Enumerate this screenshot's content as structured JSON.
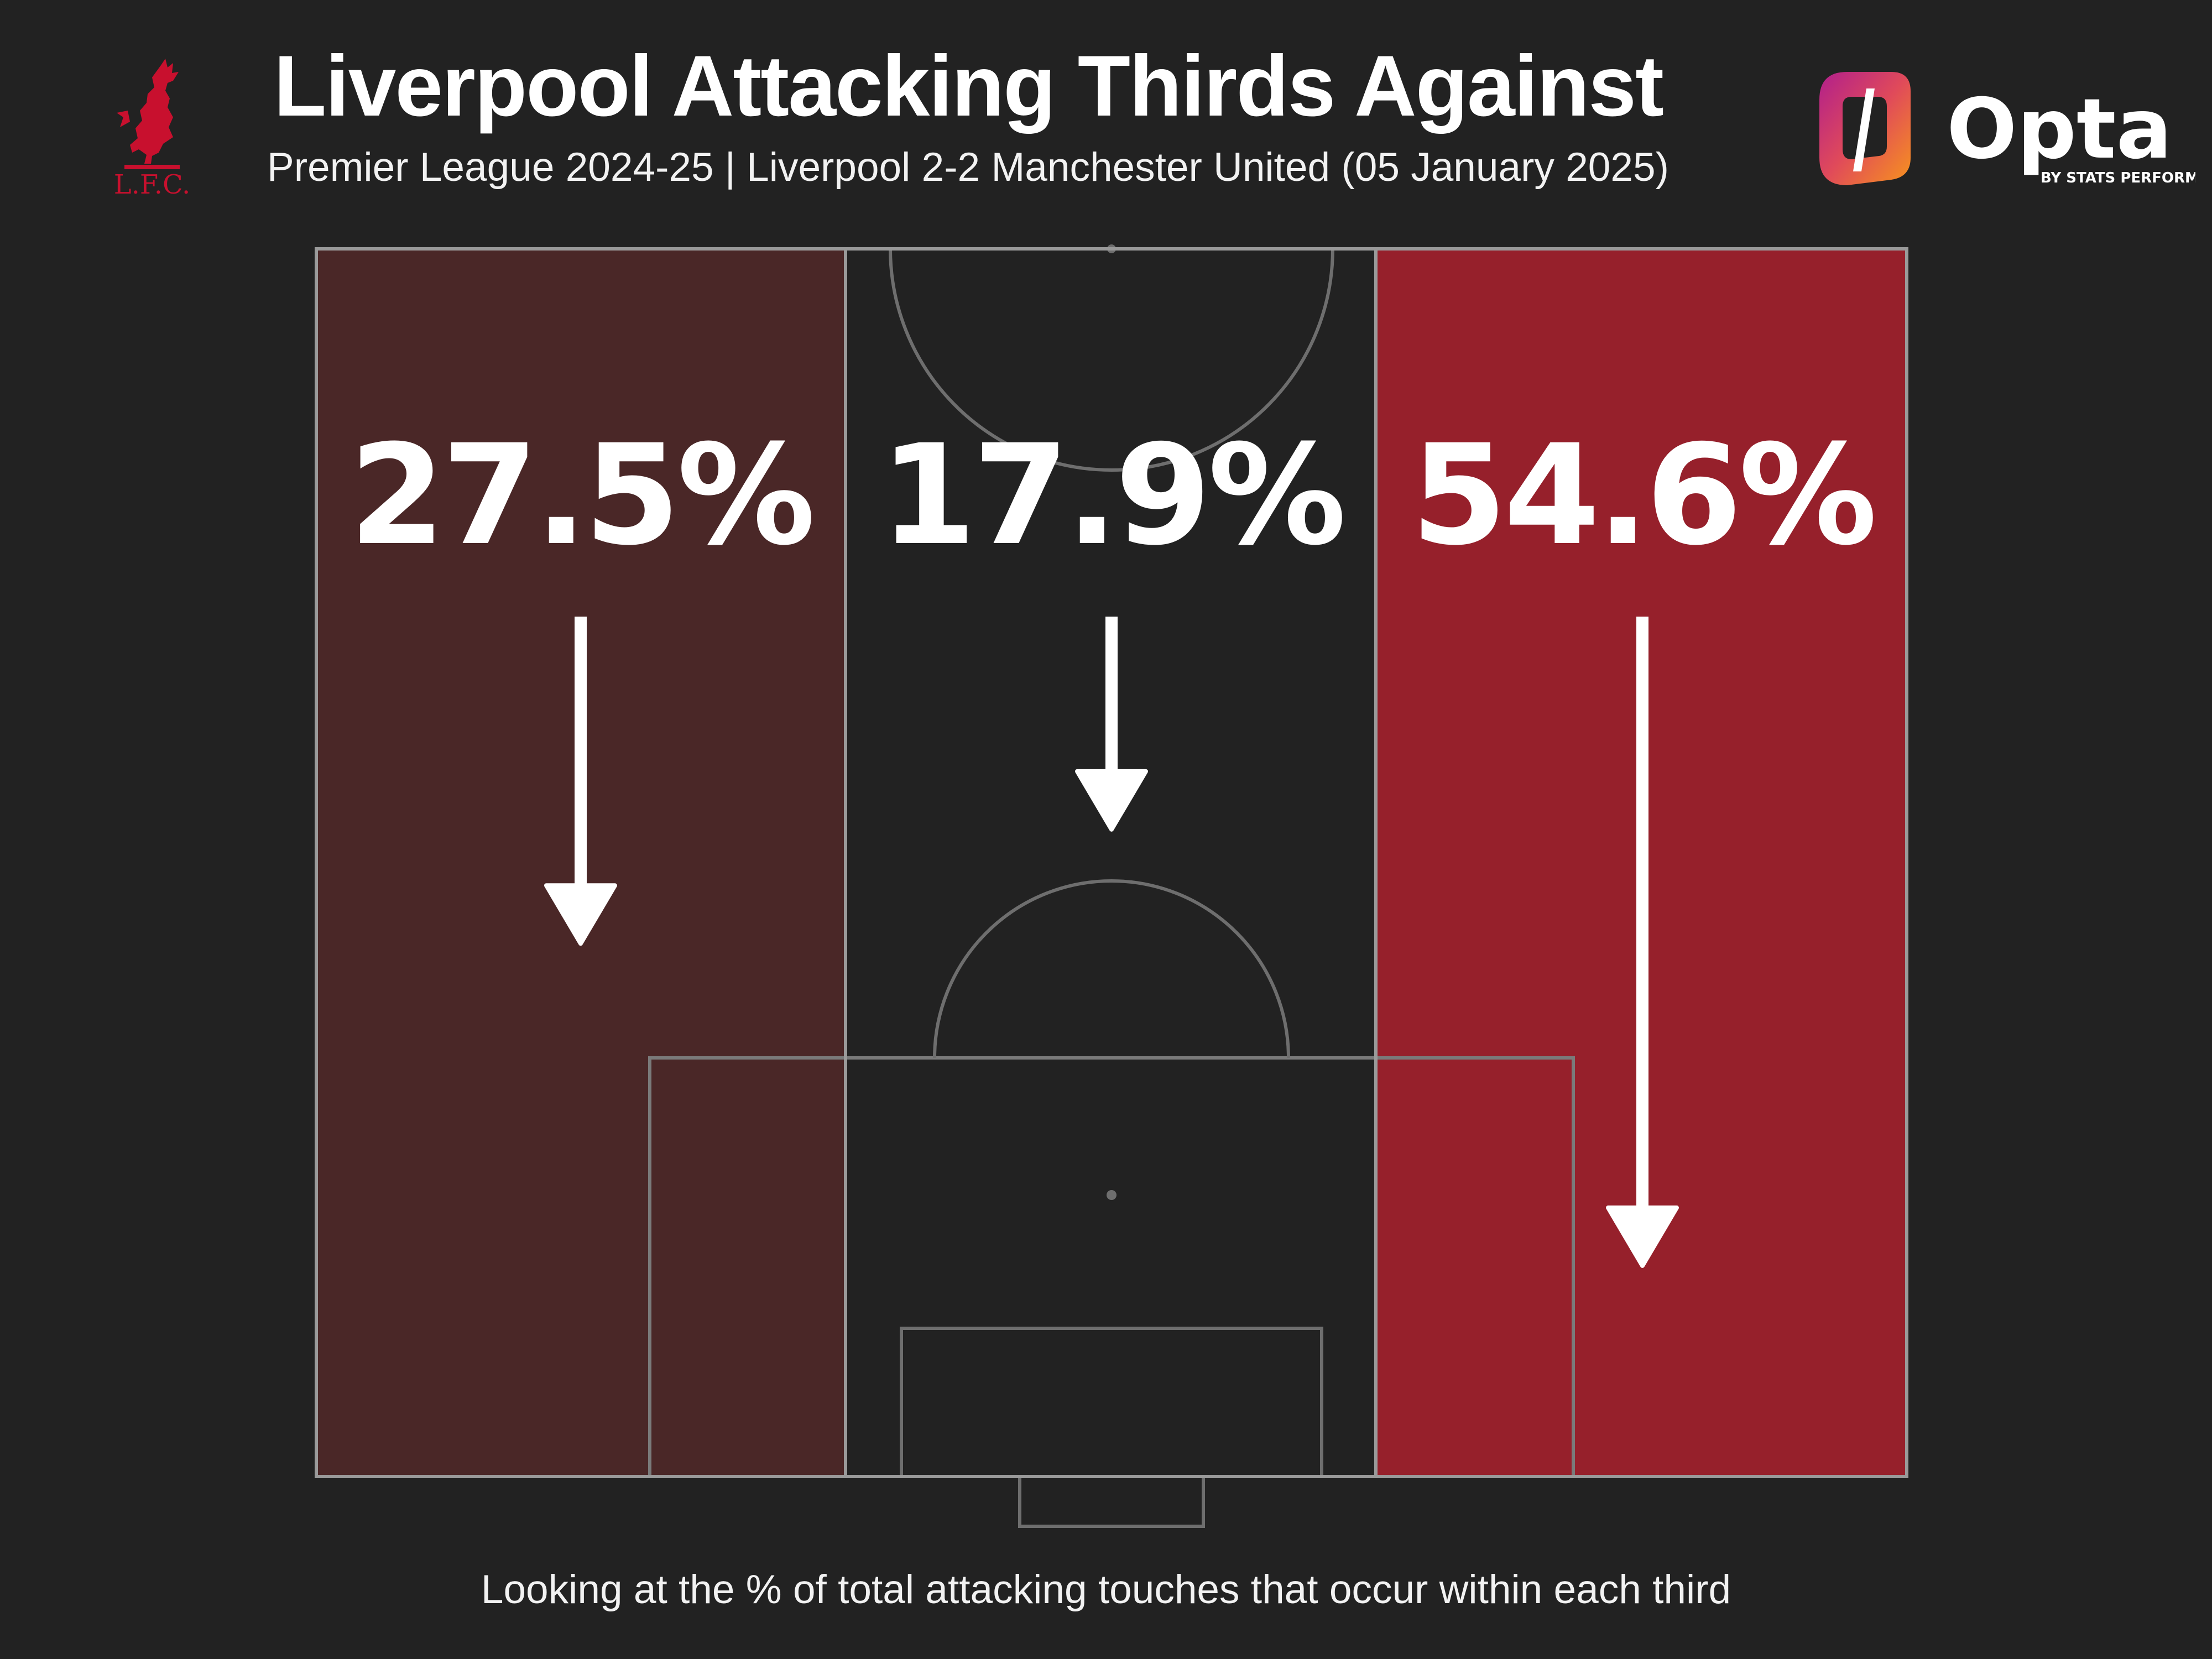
{
  "header": {
    "title": "Liverpool Attacking Thirds Against",
    "subtitle": "Premier League 2024-25 | Liverpool 2-2 Manchester United (05 January 2025)",
    "club_logo_text": "L.F.C.",
    "brand_logo_text": "Opta",
    "brand_logo_subtext": "BY STATS PERFORM"
  },
  "footnote": "Looking at the % of total attacking touches that occur within each third",
  "colors": {
    "background": "#222222",
    "left_third": "#4a2727",
    "middle_third": "#222222",
    "right_third": "#96202b",
    "pitch_lines": "#6e6e6e",
    "accent_red": "#c8102e"
  },
  "chart_data": {
    "type": "bar",
    "categories": [
      "Left third",
      "Centre third",
      "Right third"
    ],
    "values": [
      27.5,
      17.9,
      54.6
    ],
    "labels": [
      "27.5%",
      "17.9%",
      "54.6%"
    ],
    "unit": "%",
    "title": "Liverpool Attacking Thirds Against",
    "subtitle": "Premier League 2024-25 | Liverpool 2-2 Manchester United (05 January 2025)",
    "note": "Looking at the % of total attacking touches that occur within each third",
    "encoding": "arrow length proportional to value; fill intensity proportional to value"
  }
}
